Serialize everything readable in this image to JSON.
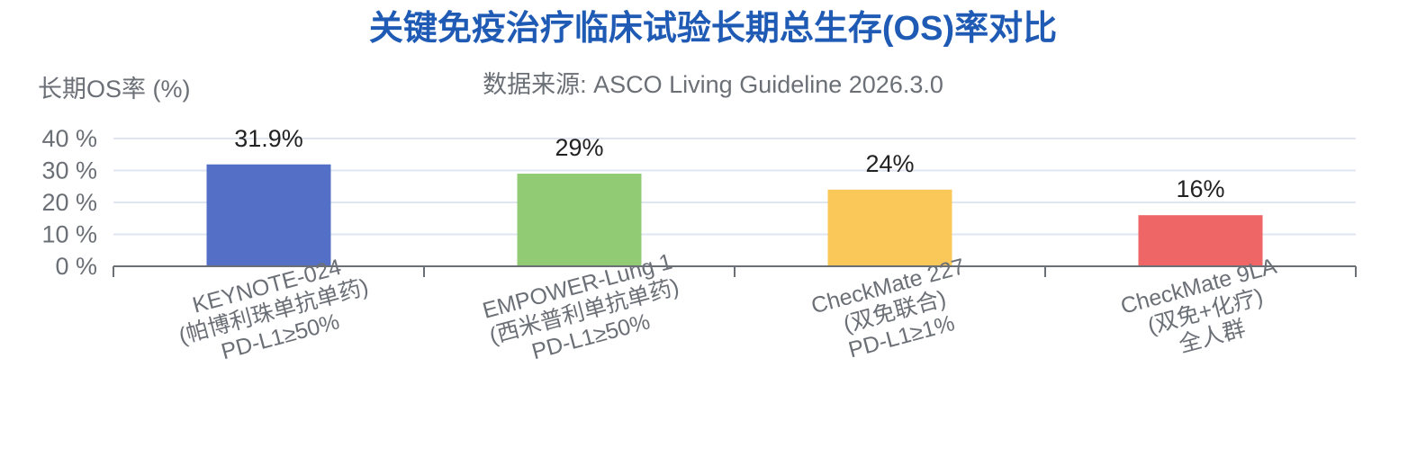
{
  "chart_data": {
    "type": "bar",
    "title": "关键免疫治疗临床试验长期总生存(OS)率对比",
    "subtitle": "数据来源: ASCO Living Guideline 2026.3.0",
    "ylabel": "长期OS率 (%)",
    "ylim": [
      0,
      40
    ],
    "yticks": [
      "0 %",
      "10 %",
      "20 %",
      "30 %",
      "40 %"
    ],
    "yticks_values": [
      0,
      10,
      20,
      30,
      40
    ],
    "grid": true,
    "categories": [
      [
        "KEYNOTE-024",
        "(帕博利珠单抗单药)",
        "PD-L1≥50%"
      ],
      [
        "EMPOWER-Lung 1",
        "(西米普利单抗单药)",
        "PD-L1≥50%"
      ],
      [
        "CheckMate 227",
        "(双免联合)",
        "PD-L1≥1%"
      ],
      [
        "CheckMate 9LA",
        "(双免+化疗)",
        "全人群"
      ]
    ],
    "values": [
      31.9,
      29,
      24,
      16
    ],
    "data_labels": [
      "31.9%",
      "29%",
      "24%",
      "16%"
    ],
    "colors": [
      "#5470c6",
      "#91cc75",
      "#fac858",
      "#ee6666"
    ]
  }
}
